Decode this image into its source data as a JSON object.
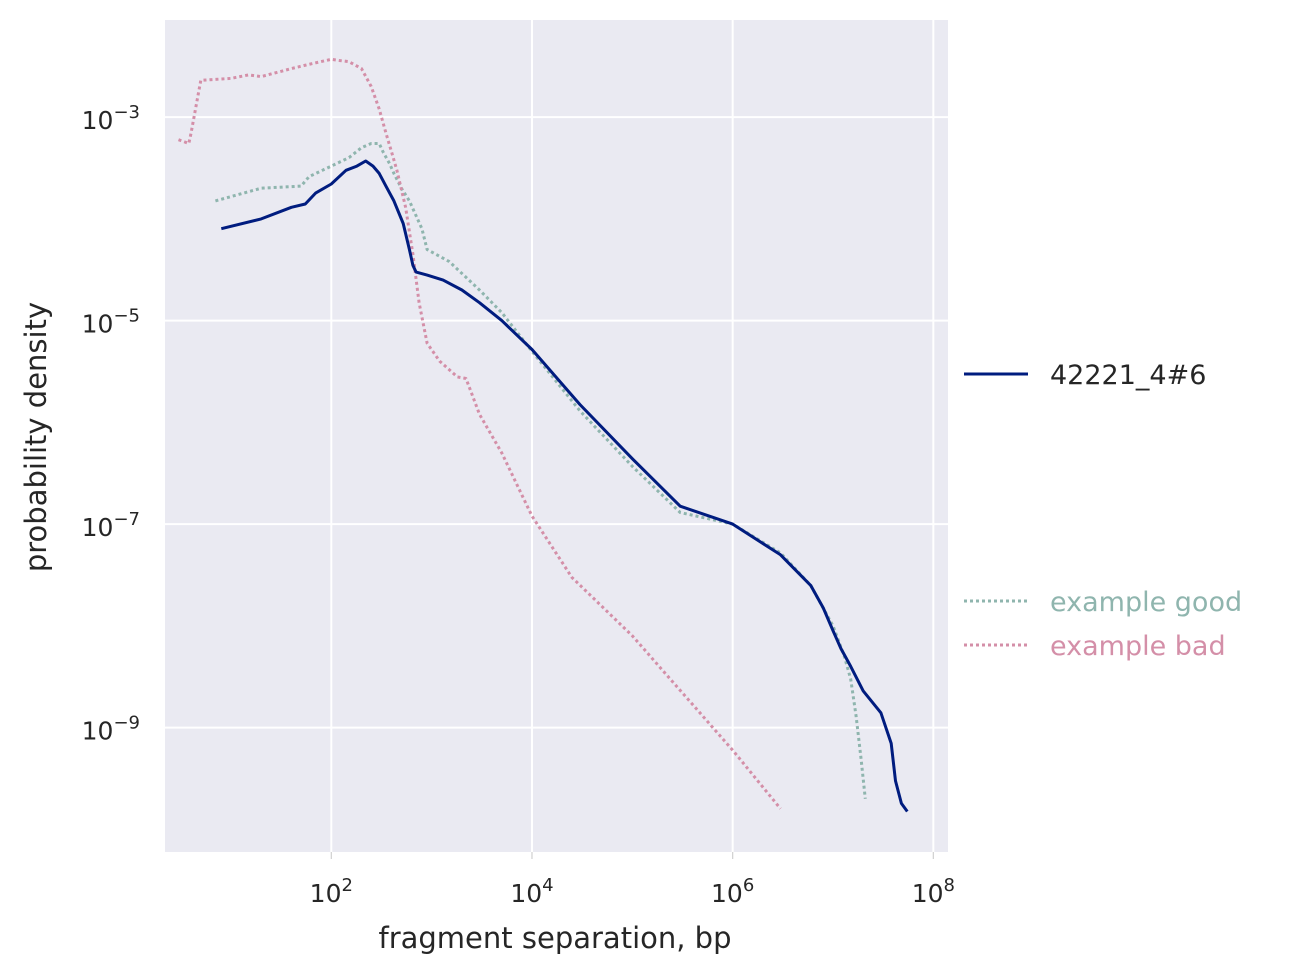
{
  "chart_data": {
    "type": "line",
    "xlabel": "fragment separation, bp",
    "ylabel": "probability density",
    "xscale": "log",
    "yscale": "log",
    "xlim": [
      2.2,
      140000000
    ],
    "ylim": [
      6e-11,
      0.009
    ],
    "x_ticks": [
      {
        "exp": 2,
        "label_base": "10",
        "label_exp": "2"
      },
      {
        "exp": 4,
        "label_base": "10",
        "label_exp": "4"
      },
      {
        "exp": 6,
        "label_base": "10",
        "label_exp": "6"
      },
      {
        "exp": 8,
        "label_base": "10",
        "label_exp": "8"
      }
    ],
    "y_ticks": [
      {
        "exp": -3,
        "label_base": "10",
        "label_exp": "−3"
      },
      {
        "exp": -5,
        "label_base": "10",
        "label_exp": "−5"
      },
      {
        "exp": -7,
        "label_base": "10",
        "label_exp": "−7"
      },
      {
        "exp": -9,
        "label_base": "10",
        "label_exp": "−9"
      }
    ],
    "grid": true,
    "legend_placement": "right",
    "background": "#eaeaf2",
    "series": [
      {
        "name": "42221_4#6",
        "color": "#001c7f",
        "style": "solid",
        "x": [
          8,
          20,
          40,
          55,
          70,
          100,
          140,
          180,
          220,
          260,
          300,
          350,
          420,
          520,
          600,
          650,
          700,
          900,
          1300,
          2000,
          3000,
          5000,
          10000,
          30000,
          100000,
          300000,
          1000000,
          3000000,
          6000000,
          8000000,
          10000000,
          12000000,
          15000000,
          20000000,
          30000000,
          38000000,
          42000000,
          48000000,
          55000000
        ],
        "y": [
          8e-05,
          0.0001,
          0.00013,
          0.00014,
          0.00018,
          0.00022,
          0.0003,
          0.00033,
          0.00037,
          0.00033,
          0.00028,
          0.00021,
          0.00015,
          9e-05,
          5e-05,
          3.5e-05,
          3e-05,
          2.8e-05,
          2.5e-05,
          2e-05,
          1.5e-05,
          1e-05,
          5.2e-06,
          1.5e-06,
          4.4e-07,
          1.5e-07,
          1e-07,
          5e-08,
          2.5e-08,
          1.5e-08,
          9e-09,
          6e-09,
          4e-09,
          2.3e-09,
          1.4e-09,
          7e-10,
          3e-10,
          1.8e-10,
          1.5e-10
        ]
      },
      {
        "name": "example good",
        "color": "#8fb5ae",
        "style": "dotted",
        "x": [
          7,
          20,
          50,
          60,
          100,
          150,
          200,
          250,
          300,
          330,
          380,
          420,
          500,
          600,
          800,
          900,
          1500,
          3000,
          5000,
          10000,
          30000,
          100000,
          300000,
          1000000,
          3000000,
          6000000,
          10000000,
          13000000,
          15000000,
          17000000,
          19000000,
          21000000
        ],
        "y": [
          0.00015,
          0.0002,
          0.00021,
          0.00026,
          0.00033,
          0.0004,
          0.0005,
          0.00055,
          0.00055,
          0.00045,
          0.00035,
          0.00028,
          0.0002,
          0.00015,
          8e-05,
          5e-05,
          3.8e-05,
          2e-05,
          1.2e-05,
          5e-06,
          1.3e-06,
          3.7e-07,
          1.3e-07,
          1e-07,
          5.2e-08,
          2.5e-08,
          1e-08,
          5e-09,
          3e-09,
          1.3e-09,
          5e-10,
          2e-10
        ]
      },
      {
        "name": "example bad",
        "color": "#d48fa8",
        "style": "dotted",
        "x": [
          3,
          3.8,
          4,
          5,
          10,
          15,
          20,
          40,
          60,
          100,
          120,
          150,
          200,
          250,
          300,
          350,
          400,
          450,
          550,
          650,
          750,
          900,
          1200,
          1800,
          2200,
          3000,
          5000,
          10000,
          25000,
          100000,
          1000000,
          3000000
        ],
        "y": [
          0.0006,
          0.00055,
          0.0007,
          0.0023,
          0.0024,
          0.0026,
          0.0025,
          0.003,
          0.0033,
          0.0037,
          0.0036,
          0.0035,
          0.003,
          0.002,
          0.0012,
          0.0007,
          0.00045,
          0.0003,
          0.00013,
          4.5e-05,
          1.5e-05,
          6e-06,
          4e-06,
          2.8e-06,
          2.7e-06,
          1.2e-06,
          5e-07,
          1.2e-07,
          3e-08,
          8e-09,
          6e-10,
          1.6e-10
        ]
      }
    ]
  }
}
